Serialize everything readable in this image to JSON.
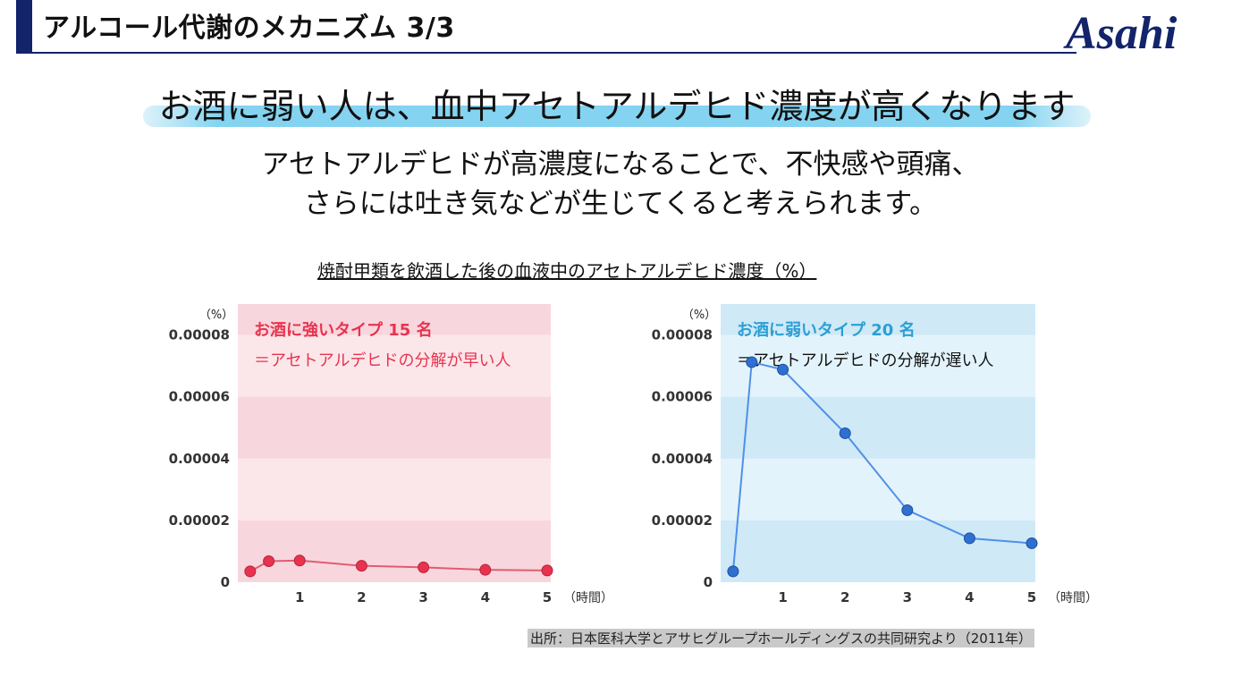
{
  "header": {
    "title": "アルコール代謝のメカニズム 3/3",
    "logo_text": "Asahi"
  },
  "headline": "お酒に弱い人は、血中アセトアルデヒド濃度が高くなります",
  "subtext": [
    "アセトアルデヒドが高濃度になることで、不快感や頭痛、",
    "さらには吐き気などが生じてくると考えられます。"
  ],
  "chart_caption": "焼酎甲類を飲酒した後の血液中のアセトアルデヒド濃度（%）",
  "source": "出所：日本医科大学とアサヒグループホールディングスの共同研究より（2011年）",
  "colors": {
    "brand": "#13246b",
    "strong_accent": "#e8334f",
    "weak_accent": "#2a9fd4"
  },
  "chart_data": [
    {
      "type": "line",
      "title": "お酒に強いタイプ 15 名",
      "subtitle": "＝アセトアルデヒドの分解が早い人",
      "ylabel": "（%）",
      "xlabel": "（時間）",
      "ylim": [
        0,
        9e-05
      ],
      "yticks": [
        0,
        2e-05,
        4e-05,
        6e-05,
        8e-05
      ],
      "ytick_labels": [
        "0",
        "0.00002",
        "0.00004",
        "0.00006",
        "0.00008"
      ],
      "xlim": [
        0,
        5
      ],
      "xticks": [
        1,
        2,
        3,
        4,
        5
      ],
      "xtick_labels": [
        "1",
        "2",
        "3",
        "4",
        "5"
      ],
      "series": [
        {
          "name": "お酒に強いタイプ",
          "x": [
            0,
            0.25,
            0.5,
            1,
            1.5,
            2,
            3
          ],
          "values": [
            3.5e-06,
            6.5e-06,
            7e-06,
            5.5e-06,
            4.5e-06,
            4.5e-06,
            4e-06
          ]
        }
      ],
      "note": "x positions are schematic; visible points plotted at approximately 0.2, 0.5, 1, 2, 3, 4, 5 hours",
      "points": [
        {
          "x": 0.2,
          "y": 3.5e-06
        },
        {
          "x": 0.5,
          "y": 6.8e-06
        },
        {
          "x": 1.0,
          "y": 7e-06
        },
        {
          "x": 2.0,
          "y": 5.3e-06
        },
        {
          "x": 3.0,
          "y": 4.8e-06
        },
        {
          "x": 4.0,
          "y": 4e-06
        },
        {
          "x": 5.0,
          "y": 3.8e-06
        }
      ]
    },
    {
      "type": "line",
      "title": "お酒に弱いタイプ 20 名",
      "subtitle": "＝アセトアルデヒドの分解が遅い人",
      "ylabel": "（%）",
      "xlabel": "（時間）",
      "ylim": [
        0,
        9e-05
      ],
      "yticks": [
        0,
        2e-05,
        4e-05,
        6e-05,
        8e-05
      ],
      "ytick_labels": [
        "0",
        "0.00002",
        "0.00004",
        "0.00006",
        "0.00008"
      ],
      "xlim": [
        0,
        5
      ],
      "xticks": [
        1,
        2,
        3,
        4,
        5
      ],
      "xtick_labels": [
        "1",
        "2",
        "3",
        "4",
        "5"
      ],
      "points": [
        {
          "x": 0.2,
          "y": 3.5e-06
        },
        {
          "x": 0.5,
          "y": 7.12e-05
        },
        {
          "x": 1.0,
          "y": 6.88e-05
        },
        {
          "x": 2.0,
          "y": 4.82e-05
        },
        {
          "x": 3.0,
          "y": 2.33e-05
        },
        {
          "x": 4.0,
          "y": 1.42e-05
        },
        {
          "x": 5.0,
          "y": 1.26e-05
        }
      ]
    }
  ]
}
